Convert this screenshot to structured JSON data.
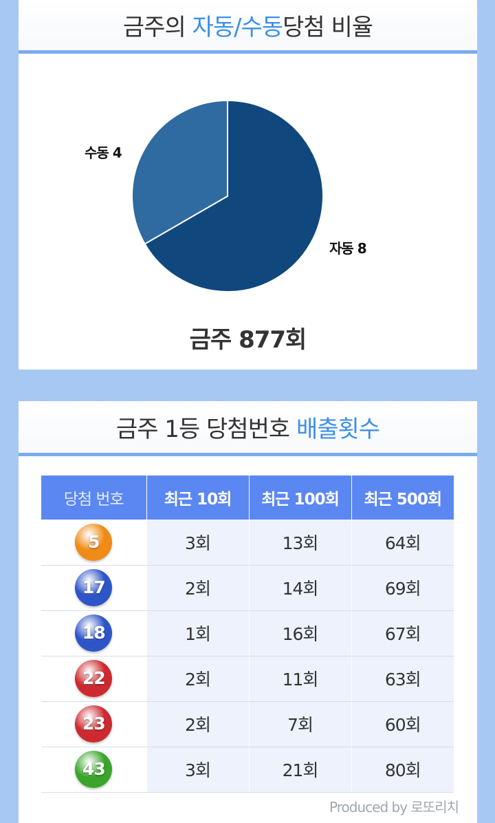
{
  "section1": {
    "title_prefix": "금주의 ",
    "title_highlight": "자동/수동",
    "title_suffix": "당첨 비율",
    "round_label": "금주 877회"
  },
  "chart_data": {
    "type": "pie",
    "slices": [
      {
        "label": "자동 8",
        "name": "자동",
        "value": 8,
        "color": "#10487e"
      },
      {
        "label": "수동 4",
        "name": "수동",
        "value": 4,
        "color": "#2f6aa0"
      }
    ]
  },
  "section2": {
    "title_prefix": "금주 1등 당첨번호 ",
    "title_highlight": "배출횟수",
    "columns": [
      "당첨 번호",
      "최근 10회",
      "최근 100회",
      "최근 500회"
    ],
    "rows": [
      {
        "number": "5",
        "color": "#f08b16",
        "recent10": "3회",
        "recent100": "13회",
        "recent500": "64회"
      },
      {
        "number": "17",
        "color": "#2e55c8",
        "recent10": "2회",
        "recent100": "14회",
        "recent500": "69회"
      },
      {
        "number": "18",
        "color": "#2e55c8",
        "recent10": "1회",
        "recent100": "16회",
        "recent500": "67회"
      },
      {
        "number": "22",
        "color": "#cc2a2f",
        "recent10": "2회",
        "recent100": "11회",
        "recent500": "63회"
      },
      {
        "number": "23",
        "color": "#cc2a2f",
        "recent10": "2회",
        "recent100": "7회",
        "recent500": "60회"
      },
      {
        "number": "43",
        "color": "#3aa52a",
        "recent10": "3회",
        "recent100": "21회",
        "recent500": "80회"
      }
    ],
    "footer": "Produced by 로또리치"
  }
}
